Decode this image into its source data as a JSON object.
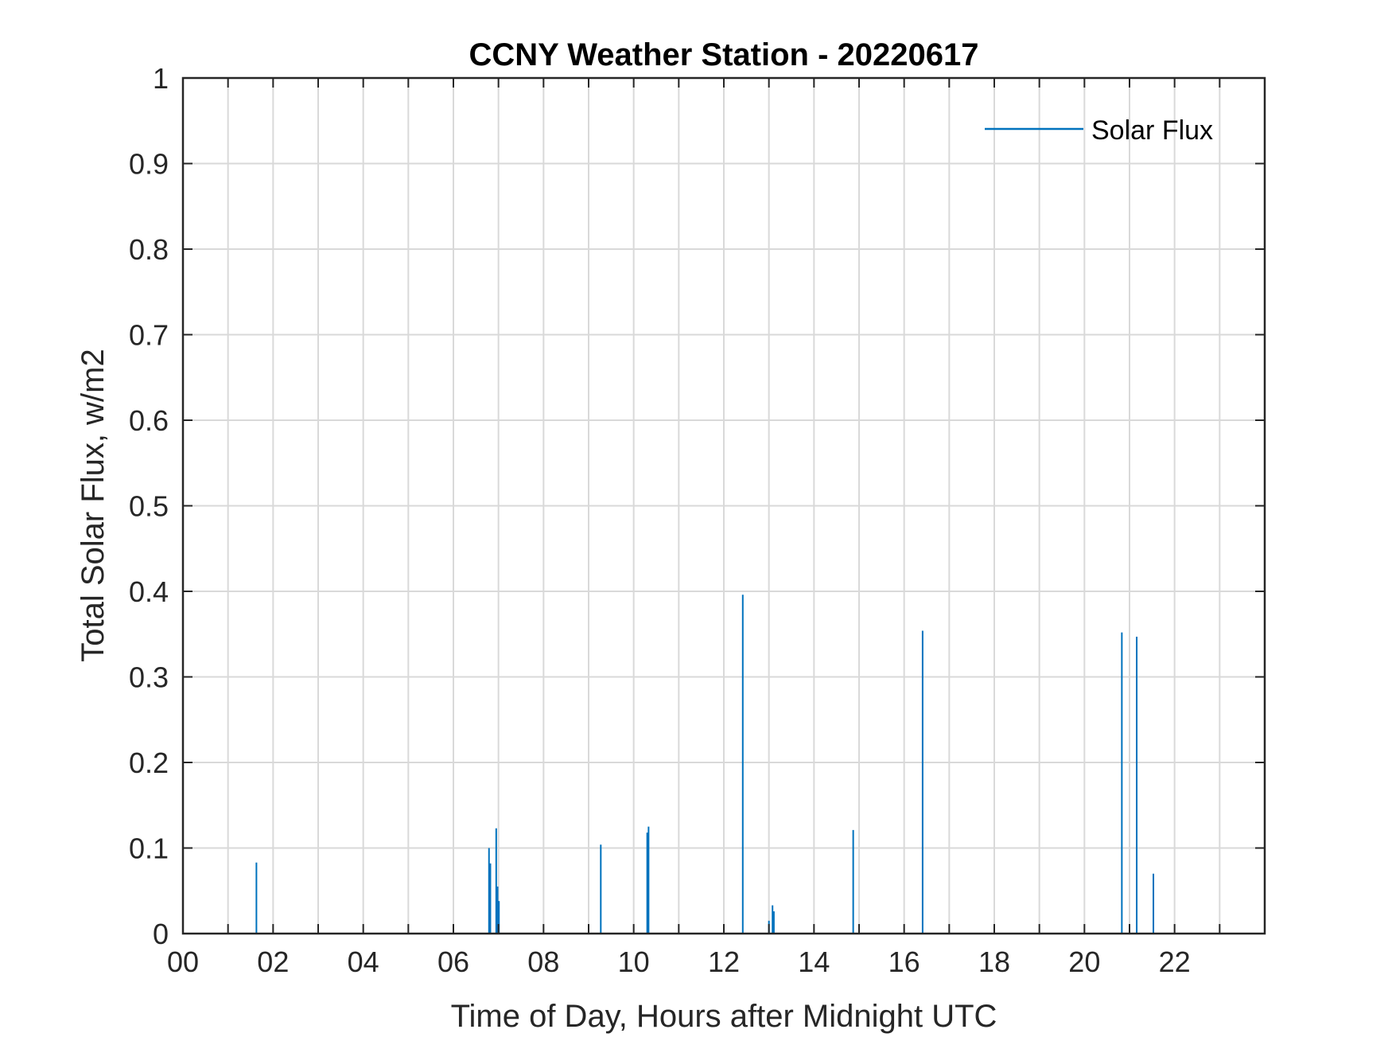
{
  "chart_data": {
    "type": "line",
    "title": "CCNY Weather Station - 20220617",
    "xlabel": "Time of Day, Hours after Midnight UTC",
    "ylabel": "Total Solar Flux, w/m2",
    "xlim": [
      0,
      24
    ],
    "ylim": [
      0,
      1
    ],
    "xticks": [
      0,
      2,
      4,
      6,
      8,
      10,
      12,
      14,
      16,
      18,
      20,
      22
    ],
    "xtick_labels": [
      "00",
      "02",
      "04",
      "06",
      "08",
      "10",
      "12",
      "14",
      "16",
      "18",
      "20",
      "22"
    ],
    "xgrid": [
      1,
      2,
      3,
      4,
      5,
      6,
      7,
      8,
      9,
      10,
      11,
      12,
      13,
      14,
      15,
      16,
      17,
      18,
      19,
      20,
      21,
      22,
      23
    ],
    "yticks": [
      0,
      0.1,
      0.2,
      0.3,
      0.4,
      0.5,
      0.6,
      0.7,
      0.8,
      0.9,
      1
    ],
    "ytick_labels": [
      "0",
      "0.1",
      "0.2",
      "0.3",
      "0.4",
      "0.5",
      "0.6",
      "0.7",
      "0.8",
      "0.9",
      "1"
    ],
    "grid": true,
    "legend_position": "top-right",
    "series": [
      {
        "name": "Solar Flux",
        "color": "#0072BD",
        "spikes": [
          {
            "x": 1.63,
            "y": 0.083
          },
          {
            "x": 6.79,
            "y": 0.1
          },
          {
            "x": 6.82,
            "y": 0.082
          },
          {
            "x": 6.95,
            "y": 0.123
          },
          {
            "x": 6.98,
            "y": 0.055
          },
          {
            "x": 7.01,
            "y": 0.038
          },
          {
            "x": 9.27,
            "y": 0.104
          },
          {
            "x": 10.3,
            "y": 0.118
          },
          {
            "x": 10.33,
            "y": 0.125
          },
          {
            "x": 12.42,
            "y": 0.396
          },
          {
            "x": 13.0,
            "y": 0.015
          },
          {
            "x": 13.08,
            "y": 0.033
          },
          {
            "x": 13.11,
            "y": 0.026
          },
          {
            "x": 14.87,
            "y": 0.121
          },
          {
            "x": 16.41,
            "y": 0.354
          },
          {
            "x": 20.83,
            "y": 0.352
          },
          {
            "x": 21.16,
            "y": 0.347
          },
          {
            "x": 21.53,
            "y": 0.07
          }
        ]
      }
    ]
  }
}
